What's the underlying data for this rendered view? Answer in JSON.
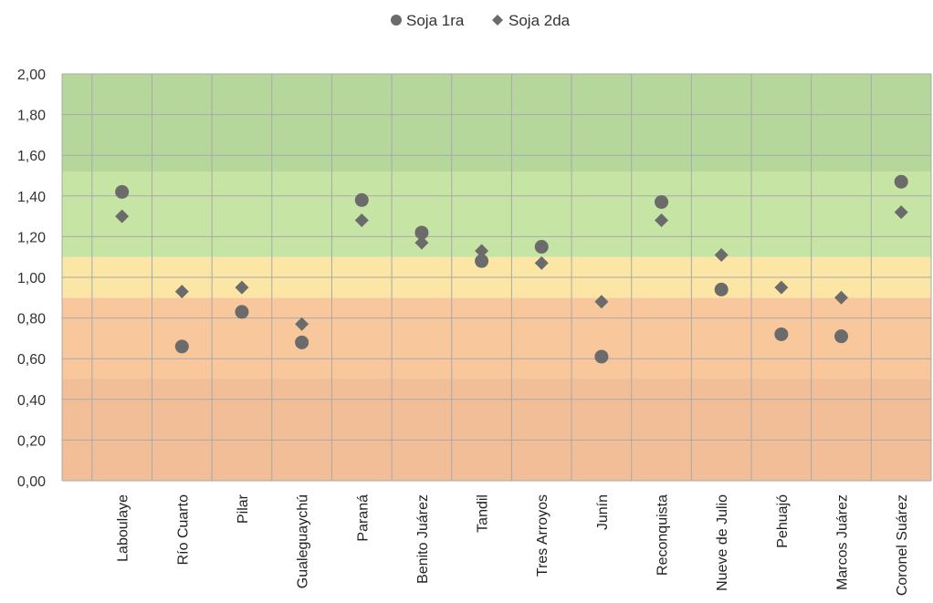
{
  "chart_data": {
    "type": "scatter",
    "legend_position": "top-center",
    "grid": true,
    "ylim": [
      0,
      2
    ],
    "y_ticks": [
      "0,00",
      "0,20",
      "0,40",
      "0,60",
      "0,80",
      "1,00",
      "1,20",
      "1,40",
      "1,60",
      "1,80",
      "2,00"
    ],
    "categories": [
      "Laboulaye",
      "Río Cuarto",
      "Pilar",
      "Gualeguaychú",
      "Paraná",
      "Benito Juárez",
      "Tandil",
      "Tres Arroyos",
      "Junín",
      "Reconquista",
      "Nueve de Julio",
      "Pehuajó",
      "Marcos Juárez",
      "Coronel Suárez"
    ],
    "series": [
      {
        "name": "Soja 1ra",
        "marker": "circle",
        "color": "#6b6b6b",
        "values": [
          1.42,
          0.66,
          0.83,
          0.68,
          1.38,
          1.22,
          1.08,
          1.15,
          0.61,
          1.37,
          0.94,
          0.72,
          0.71,
          1.47
        ]
      },
      {
        "name": "Soja 2da",
        "marker": "diamond",
        "color": "#6b6b6b",
        "values": [
          1.3,
          0.93,
          0.95,
          0.77,
          1.28,
          1.17,
          1.13,
          1.07,
          0.88,
          1.28,
          1.11,
          0.95,
          0.9,
          1.32
        ]
      }
    ],
    "bands": [
      {
        "from": 0.0,
        "to": 0.5,
        "color": "#f2be97"
      },
      {
        "from": 0.5,
        "to": 0.9,
        "color": "#f8c89c"
      },
      {
        "from": 0.9,
        "to": 1.1,
        "color": "#fbe6a6"
      },
      {
        "from": 1.1,
        "to": 1.52,
        "color": "#c6e4a4"
      },
      {
        "from": 1.52,
        "to": 2.0,
        "color": "#b6d79c"
      }
    ]
  }
}
